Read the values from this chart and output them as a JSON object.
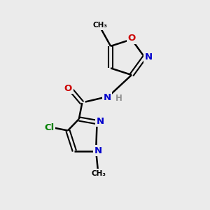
{
  "background_color": "#ebebeb",
  "bond_color": "#000000",
  "atom_colors": {
    "N": "#0000cc",
    "O": "#cc0000",
    "Cl": "#008000",
    "C": "#000000",
    "H": "#909090"
  },
  "figsize": [
    3.0,
    3.0
  ],
  "dpi": 100
}
